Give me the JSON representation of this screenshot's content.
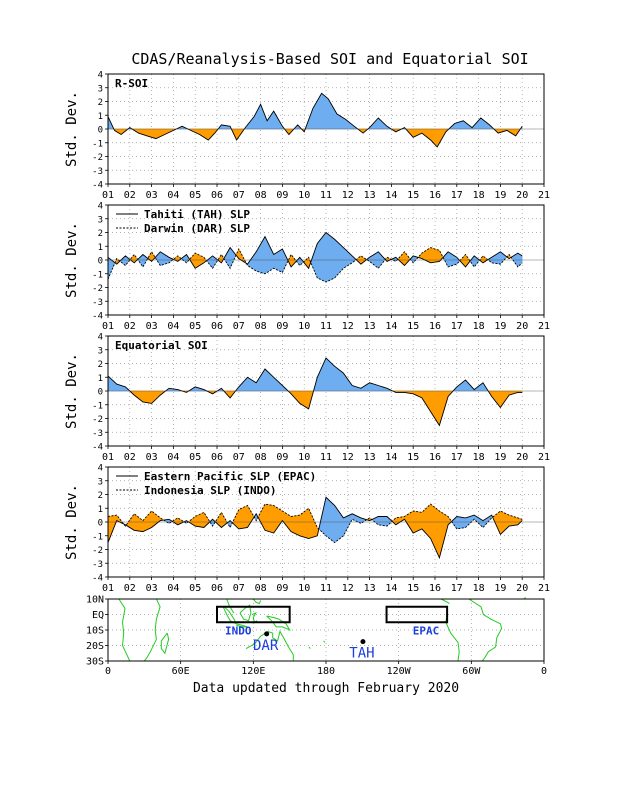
{
  "chart_data": [
    {
      "type": "area",
      "panel": "R-SOI",
      "title": "CDAS/Reanalysis-Based SOI and Equatorial SOI",
      "label": "R-SOI",
      "ylabel": "Std. Dev.",
      "ylim": [
        -4,
        4
      ],
      "yticks": [
        4,
        3,
        2,
        1,
        0,
        -1,
        -2,
        -3,
        -4
      ],
      "xlim": [
        2001,
        2021
      ],
      "xticks": [
        "01",
        "02",
        "03",
        "04",
        "05",
        "06",
        "07",
        "08",
        "09",
        "10",
        "11",
        "12",
        "13",
        "14",
        "15",
        "16",
        "17",
        "18",
        "19",
        "20",
        "21"
      ],
      "grid": true,
      "fill_positive": "#6eaef0",
      "fill_negative": "#ff9d00",
      "x": [
        2001.0,
        2001.3,
        2001.6,
        2002.0,
        2002.4,
        2002.8,
        2003.2,
        2003.6,
        2004.0,
        2004.4,
        2004.8,
        2005.2,
        2005.6,
        2005.9,
        2006.2,
        2006.6,
        2006.9,
        2007.3,
        2007.7,
        2008.0,
        2008.3,
        2008.6,
        2009.0,
        2009.3,
        2009.7,
        2010.0,
        2010.4,
        2010.8,
        2011.1,
        2011.5,
        2011.9,
        2012.3,
        2012.7,
        2013.0,
        2013.4,
        2013.8,
        2014.2,
        2014.6,
        2015.0,
        2015.4,
        2015.8,
        2016.1,
        2016.5,
        2016.9,
        2017.3,
        2017.7,
        2018.1,
        2018.5,
        2018.9,
        2019.3,
        2019.7,
        2020.0
      ],
      "y": [
        0.9,
        -0.1,
        -0.4,
        0.1,
        -0.3,
        -0.5,
        -0.7,
        -0.4,
        -0.1,
        0.2,
        -0.1,
        -0.4,
        -0.8,
        -0.3,
        0.3,
        0.2,
        -0.8,
        0.1,
        0.9,
        1.8,
        0.6,
        1.3,
        0.2,
        -0.4,
        0.3,
        -0.2,
        1.5,
        2.6,
        2.2,
        1.1,
        0.7,
        0.2,
        -0.3,
        0.1,
        0.8,
        0.2,
        -0.2,
        0.1,
        -0.6,
        -0.3,
        -0.8,
        -1.3,
        -0.2,
        0.4,
        0.6,
        0.1,
        0.8,
        0.3,
        -0.3,
        -0.1,
        -0.5,
        0.2
      ]
    },
    {
      "type": "area",
      "panel": "SLP",
      "legend": [
        "Tahiti (TAH) SLP",
        "Darwin (DAR) SLP"
      ],
      "ylabel": "Std. Dev.",
      "ylim": [
        -4,
        4
      ],
      "xlim": [
        2001,
        2021
      ],
      "grid": true,
      "x": [
        2001.0,
        2001.4,
        2001.8,
        2002.2,
        2002.6,
        2003.0,
        2003.4,
        2003.8,
        2004.2,
        2004.6,
        2005.0,
        2005.4,
        2005.8,
        2006.2,
        2006.6,
        2007.0,
        2007.4,
        2007.8,
        2008.2,
        2008.6,
        2009.0,
        2009.4,
        2009.8,
        2010.2,
        2010.6,
        2011.0,
        2011.4,
        2011.8,
        2012.2,
        2012.6,
        2013.0,
        2013.4,
        2013.8,
        2014.2,
        2014.6,
        2015.0,
        2015.4,
        2015.8,
        2016.2,
        2016.6,
        2017.0,
        2017.4,
        2017.8,
        2018.2,
        2018.6,
        2019.0,
        2019.4,
        2019.8,
        2020.0
      ],
      "series": [
        {
          "name": "Tahiti (TAH) SLP",
          "values": [
            0.2,
            -0.3,
            0.3,
            -0.2,
            0.4,
            -0.1,
            0.6,
            0.2,
            -0.1,
            0.4,
            -0.6,
            -0.2,
            0.3,
            -0.2,
            0.9,
            0.1,
            -0.3,
            0.6,
            1.7,
            0.4,
            0.8,
            -0.5,
            0.2,
            -0.6,
            1.2,
            2.0,
            1.5,
            0.9,
            0.3,
            -0.3,
            0.2,
            0.6,
            -0.1,
            0.2,
            -0.4,
            0.3,
            0.1,
            -0.2,
            -0.1,
            0.6,
            0.2,
            -0.5,
            0.3,
            -0.2,
            0.2,
            0.6,
            0.1,
            0.5,
            0.3
          ]
        },
        {
          "name": "Darwin (DAR) SLP",
          "values": [
            -1.4,
            0.1,
            -0.4,
            0.4,
            -0.5,
            0.6,
            -0.4,
            -0.2,
            0.3,
            -0.2,
            0.5,
            0.2,
            -0.6,
            0.4,
            -0.6,
            0.8,
            -0.4,
            -0.8,
            -1.0,
            -0.6,
            -0.9,
            0.4,
            -0.4,
            0.2,
            -1.3,
            -1.6,
            -1.3,
            -0.6,
            -0.2,
            0.3,
            -0.1,
            -0.6,
            0.2,
            -0.1,
            0.6,
            -0.2,
            0.5,
            0.9,
            0.7,
            -0.5,
            -0.3,
            0.4,
            -0.5,
            0.3,
            -0.2,
            -0.3,
            0.4,
            -0.5,
            -0.2
          ]
        }
      ]
    },
    {
      "type": "area",
      "panel": "Equatorial SOI",
      "label": "Equatorial SOI",
      "ylabel": "Std. Dev.",
      "ylim": [
        -4,
        4
      ],
      "xlim": [
        2001,
        2021
      ],
      "grid": true,
      "x": [
        2001.0,
        2001.4,
        2001.8,
        2002.2,
        2002.6,
        2003.0,
        2003.4,
        2003.8,
        2004.2,
        2004.6,
        2005.0,
        2005.4,
        2005.8,
        2006.2,
        2006.6,
        2007.0,
        2007.4,
        2007.8,
        2008.2,
        2008.6,
        2009.0,
        2009.4,
        2009.8,
        2010.2,
        2010.6,
        2011.0,
        2011.4,
        2011.8,
        2012.2,
        2012.6,
        2013.0,
        2013.4,
        2013.8,
        2014.2,
        2014.6,
        2015.0,
        2015.4,
        2015.8,
        2016.2,
        2016.6,
        2017.0,
        2017.4,
        2017.8,
        2018.2,
        2018.6,
        2019.0,
        2019.4,
        2019.8,
        2020.0
      ],
      "y": [
        1.1,
        0.5,
        0.3,
        -0.3,
        -0.8,
        -0.9,
        -0.3,
        0.2,
        0.1,
        -0.1,
        0.3,
        0.1,
        -0.2,
        0.2,
        -0.5,
        0.3,
        1.0,
        0.6,
        1.6,
        1.0,
        0.4,
        -0.2,
        -0.9,
        -1.3,
        1.0,
        2.4,
        1.8,
        1.3,
        0.4,
        0.2,
        0.6,
        0.4,
        0.2,
        -0.1,
        -0.1,
        -0.2,
        -0.5,
        -1.5,
        -2.5,
        -0.4,
        0.3,
        0.8,
        0.1,
        0.6,
        -0.4,
        -1.2,
        -0.3,
        -0.1,
        -0.1
      ]
    },
    {
      "type": "area",
      "panel": "EPAC/INDO SLP",
      "legend": [
        "Eastern Pacific SLP (EPAC)",
        "Indonesia SLP (INDO)"
      ],
      "ylabel": "Std. Dev.",
      "ylim": [
        -4,
        4
      ],
      "xlim": [
        2001,
        2021
      ],
      "grid": true,
      "x": [
        2001.0,
        2001.4,
        2001.8,
        2002.2,
        2002.6,
        2003.0,
        2003.4,
        2003.8,
        2004.2,
        2004.6,
        2005.0,
        2005.4,
        2005.8,
        2006.2,
        2006.6,
        2007.0,
        2007.4,
        2007.8,
        2008.2,
        2008.6,
        2009.0,
        2009.4,
        2009.8,
        2010.2,
        2010.6,
        2011.0,
        2011.4,
        2011.8,
        2012.2,
        2012.6,
        2013.0,
        2013.4,
        2013.8,
        2014.2,
        2014.6,
        2015.0,
        2015.4,
        2015.8,
        2016.2,
        2016.6,
        2017.0,
        2017.4,
        2017.8,
        2018.2,
        2018.6,
        2019.0,
        2019.4,
        2019.8,
        2020.0
      ],
      "series": [
        {
          "name": "Eastern Pacific SLP (EPAC)",
          "values": [
            -1.5,
            0.1,
            -0.2,
            -0.6,
            -0.7,
            -0.4,
            0.1,
            0.2,
            -0.2,
            0.1,
            -0.3,
            -0.4,
            0.2,
            -0.4,
            0.1,
            -0.5,
            -0.4,
            0.6,
            -0.6,
            -0.8,
            0.1,
            -0.7,
            -1.0,
            -1.2,
            -1.0,
            1.8,
            1.2,
            0.3,
            0.6,
            0.3,
            0.1,
            0.4,
            0.4,
            -0.2,
            0.2,
            -0.8,
            -0.5,
            -1.2,
            -2.6,
            -0.2,
            0.4,
            0.3,
            0.5,
            0.1,
            0.5,
            -0.9,
            -0.3,
            -0.2,
            0.1
          ]
        },
        {
          "name": "Indonesia SLP (INDO)",
          "values": [
            0.4,
            0.5,
            -0.3,
            0.6,
            0.1,
            0.8,
            0.3,
            -0.1,
            0.3,
            -0.1,
            0.4,
            0.7,
            -0.3,
            0.7,
            -0.4,
            0.9,
            1.2,
            0.1,
            1.3,
            1.2,
            0.8,
            0.4,
            0.5,
            1.0,
            -0.4,
            -1.0,
            -1.5,
            -1.0,
            0.2,
            -0.1,
            0.3,
            -0.2,
            -0.3,
            0.3,
            0.4,
            0.8,
            0.7,
            1.3,
            0.8,
            0.4,
            -0.5,
            -0.4,
            0.2,
            -0.4,
            0.3,
            0.8,
            0.5,
            0.3,
            0.2
          ]
        }
      ]
    }
  ],
  "map": {
    "lat_labels": [
      "10N",
      "EQ",
      "10S",
      "20S",
      "30S"
    ],
    "lon_labels": [
      "0",
      "60E",
      "120E",
      "180",
      "120W",
      "60W",
      "0"
    ],
    "regions": [
      {
        "label": "INDO",
        "lon": [
          90,
          150
        ],
        "lat": [
          -5,
          5
        ]
      },
      {
        "label": "EPAC",
        "lon": [
          -130,
          -80
        ],
        "lat": [
          -5,
          5
        ]
      }
    ],
    "stations": [
      {
        "label": "DAR",
        "lon": 131,
        "lat": -12.5
      },
      {
        "label": "TAH",
        "lon": -149.5,
        "lat": -17.5
      }
    ],
    "label_color": "#1a3ee0",
    "land_color": "#22cc22"
  },
  "footer": "Data updated through February 2020"
}
